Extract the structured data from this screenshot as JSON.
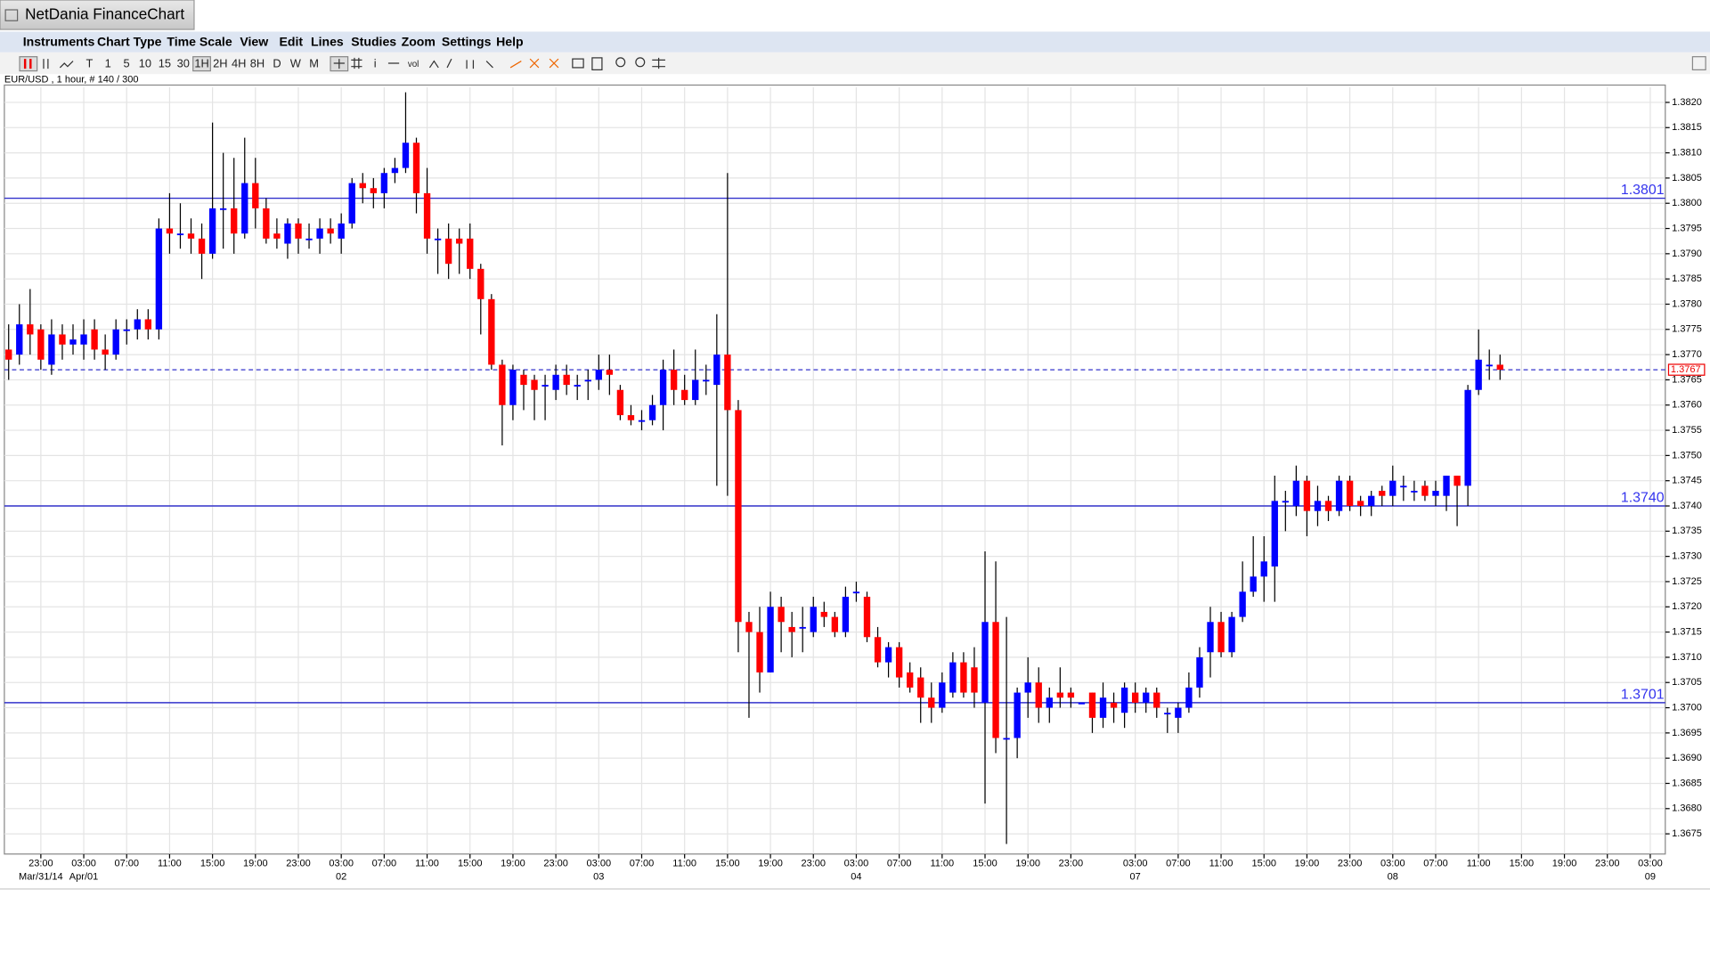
{
  "window": {
    "title": "NetDania FinanceChart",
    "menu": [
      "Instruments",
      "Chart Type",
      "Time Scale",
      "View",
      "Edit",
      "Lines",
      "Studies",
      "Zoom",
      "Settings",
      "Help"
    ],
    "toolbar": [
      "T",
      "1",
      "5",
      "10",
      "15",
      "30",
      "1H",
      "2H",
      "4H",
      "8H",
      "D",
      "W",
      "M",
      "i",
      "vol"
    ]
  },
  "chart_data": {
    "type": "candlestick",
    "subtitle": "EUR/USD , 1 hour, # 140 / 300",
    "up_color": "#0000ff",
    "down_color": "#ff0000",
    "grid": true,
    "xlim": [
      -0.4,
      154.4
    ],
    "ylim": [
      1.3671,
      1.3823
    ],
    "xticks": [
      {
        "value": 3,
        "label": "23:00"
      },
      {
        "value": 7,
        "label": "03:00"
      },
      {
        "value": 11,
        "label": "07:00"
      },
      {
        "value": 15,
        "label": "11:00"
      },
      {
        "value": 19,
        "label": "15:00"
      },
      {
        "value": 23,
        "label": "19:00"
      },
      {
        "value": 27,
        "label": "23:00"
      },
      {
        "value": 31,
        "label": "03:00"
      },
      {
        "value": 35,
        "label": "07:00"
      },
      {
        "value": 39,
        "label": "11:00"
      },
      {
        "value": 43,
        "label": "15:00"
      },
      {
        "value": 47,
        "label": "19:00"
      },
      {
        "value": 51,
        "label": "23:00"
      },
      {
        "value": 55,
        "label": "03:00"
      },
      {
        "value": 59,
        "label": "07:00"
      },
      {
        "value": 63,
        "label": "11:00"
      },
      {
        "value": 67,
        "label": "15:00"
      },
      {
        "value": 71,
        "label": "19:00"
      },
      {
        "value": 75,
        "label": "23:00"
      },
      {
        "value": 79,
        "label": "03:00"
      },
      {
        "value": 83,
        "label": "07:00"
      },
      {
        "value": 87,
        "label": "11:00"
      },
      {
        "value": 91,
        "label": "15:00"
      },
      {
        "value": 95,
        "label": "19:00"
      },
      {
        "value": 99,
        "label": "23:00"
      },
      {
        "value": 105,
        "label": "03:00"
      },
      {
        "value": 109,
        "label": "07:00"
      },
      {
        "value": 113,
        "label": "11:00"
      },
      {
        "value": 117,
        "label": "15:00"
      },
      {
        "value": 121,
        "label": "19:00"
      },
      {
        "value": 125,
        "label": "23:00"
      },
      {
        "value": 129,
        "label": "03:00"
      },
      {
        "value": 133,
        "label": "07:00"
      },
      {
        "value": 137,
        "label": "11:00"
      },
      {
        "value": 141,
        "label": "15:00"
      },
      {
        "value": 145,
        "label": "19:00"
      },
      {
        "value": 149,
        "label": "23:00"
      },
      {
        "value": 153,
        "label": "03:00"
      }
    ],
    "xdates": [
      {
        "value": 3,
        "label": "Mar/31/14"
      },
      {
        "value": 7,
        "label": "Apr/01"
      },
      {
        "value": 31,
        "label": "02"
      },
      {
        "value": 55,
        "label": "03"
      },
      {
        "value": 79,
        "label": "04"
      },
      {
        "value": 105,
        "label": "07"
      },
      {
        "value": 129,
        "label": "08"
      },
      {
        "value": 153,
        "label": "09"
      }
    ],
    "yticks": [
      {
        "value": 1.382,
        "label": "1.3820"
      },
      1.3815,
      {
        "value": 1.381,
        "label": "1.3810"
      },
      1.3805,
      {
        "value": 1.38,
        "label": "1.3800"
      },
      1.3795,
      {
        "value": 1.379,
        "label": "1.3790"
      },
      1.3785,
      {
        "value": 1.378,
        "label": "1.3780"
      },
      1.3775,
      {
        "value": 1.377,
        "label": "1.3770"
      },
      1.3765,
      {
        "value": 1.376,
        "label": "1.3760"
      },
      1.3755,
      {
        "value": 1.375,
        "label": "1.3750"
      },
      1.3745,
      {
        "value": 1.374,
        "label": "1.3740"
      },
      1.3735,
      {
        "value": 1.373,
        "label": "1.3730"
      },
      1.3725,
      {
        "value": 1.372,
        "label": "1.3720"
      },
      1.3715,
      {
        "value": 1.371,
        "label": "1.3710"
      },
      1.3705,
      {
        "value": 1.37,
        "label": "1.3700"
      },
      1.3695,
      {
        "value": 1.369,
        "label": "1.3690"
      },
      1.3685,
      {
        "value": 1.368,
        "label": "1.3680"
      },
      1.3675
    ],
    "levels": [
      {
        "value": 1.3801,
        "label": "1.3801"
      },
      {
        "value": 1.374,
        "label": "1.3740"
      },
      {
        "value": 1.3701,
        "label": "1.3701"
      }
    ],
    "last_price": {
      "value": 1.3767,
      "label": "1.3767"
    },
    "open": [
      1.3771,
      1.377,
      1.3776,
      1.3775,
      1.3768,
      1.3774,
      1.3772,
      1.3772,
      1.3775,
      1.3771,
      1.377,
      1.3775,
      1.3775,
      1.3777,
      1.3775,
      1.3795,
      1.3794,
      1.3794,
      1.3793,
      1.379,
      1.3799,
      1.3799,
      1.3794,
      1.3804,
      1.3799,
      1.3794,
      1.3792,
      1.3796,
      1.3793,
      1.3793,
      1.3795,
      1.3793,
      1.3796,
      1.3804,
      1.3803,
      1.3802,
      1.3806,
      1.3807,
      1.3812,
      1.3802,
      1.3793,
      1.3793,
      1.3793,
      1.3793,
      1.3787,
      1.3781,
      1.3768,
      1.376,
      1.3766,
      1.3765,
      1.3764,
      1.3763,
      1.3766,
      1.3764,
      1.3765,
      1.3765,
      1.3767,
      1.3763,
      1.3758,
      1.3757,
      1.3757,
      1.376,
      1.3767,
      1.3763,
      1.3761,
      1.3765,
      1.3764,
      1.377,
      1.3759,
      1.3717,
      1.3715,
      1.3707,
      1.372,
      1.3716,
      1.3716,
      1.3715,
      1.3719,
      1.3718,
      1.3715,
      1.3723,
      1.3722,
      1.3714,
      1.3709,
      1.3712,
      1.3707,
      1.3706,
      1.3702,
      1.37,
      1.3703,
      1.3709,
      1.3708,
      1.3701,
      1.3717,
      1.3694,
      1.3694,
      1.3703,
      1.3705,
      1.37,
      1.3703,
      1.3703,
      1.3701,
      1.3703,
      1.3698,
      1.3701,
      1.3699,
      1.3703,
      1.3701,
      1.3703,
      1.3699,
      1.3698,
      1.37,
      1.3704,
      1.3711,
      1.3717,
      1.3711,
      1.3718,
      1.3723,
      1.3726,
      1.3728,
      1.3741,
      1.374,
      1.3745,
      1.3739,
      1.3741,
      1.3739,
      1.3745,
      1.3741,
      1.374,
      1.3743,
      1.3742,
      1.3744,
      1.3743,
      1.3744,
      1.3742,
      1.3742,
      1.3746,
      1.3744,
      1.3763,
      1.3768,
      1.3768
    ],
    "high": [
      1.3776,
      1.378,
      1.3783,
      1.3776,
      1.3777,
      1.3776,
      1.3776,
      1.3777,
      1.3777,
      1.3774,
      1.3777,
      1.3777,
      1.3779,
      1.3779,
      1.3797,
      1.3802,
      1.38,
      1.3797,
      1.3796,
      1.3816,
      1.381,
      1.3809,
      1.3813,
      1.3809,
      1.3801,
      1.3797,
      1.3797,
      1.3797,
      1.3796,
      1.3797,
      1.3797,
      1.3798,
      1.3805,
      1.3806,
      1.3805,
      1.3807,
      1.3809,
      1.3822,
      1.3813,
      1.3807,
      1.3795,
      1.3796,
      1.3795,
      1.3796,
      1.3788,
      1.3782,
      1.3769,
      1.3768,
      1.3767,
      1.3766,
      1.3766,
      1.3768,
      1.3768,
      1.3766,
      1.3767,
      1.377,
      1.377,
      1.3764,
      1.376,
      1.3759,
      1.3762,
      1.3769,
      1.3771,
      1.3766,
      1.3771,
      1.3768,
      1.3778,
      1.3806,
      1.3761,
      1.3719,
      1.372,
      1.3723,
      1.3722,
      1.3719,
      1.372,
      1.3722,
      1.3721,
      1.3719,
      1.3724,
      1.3725,
      1.3723,
      1.3716,
      1.3713,
      1.3713,
      1.3709,
      1.3708,
      1.3705,
      1.3707,
      1.3711,
      1.3711,
      1.3712,
      1.3731,
      1.3729,
      1.3718,
      1.3704,
      1.371,
      1.3708,
      1.3704,
      1.3708,
      1.3704,
      1.3701,
      1.3703,
      1.3705,
      1.3703,
      1.3705,
      1.3705,
      1.3704,
      1.3704,
      1.37,
      1.3701,
      1.3707,
      1.3712,
      1.372,
      1.3719,
      1.3719,
      1.3729,
      1.3734,
      1.3734,
      1.3746,
      1.3743,
      1.3748,
      1.3746,
      1.3744,
      1.3742,
      1.3746,
      1.3746,
      1.3742,
      1.3743,
      1.3744,
      1.3748,
      1.3746,
      1.3745,
      1.3745,
      1.3745,
      1.3746,
      1.3746,
      1.3764,
      1.3775,
      1.3771,
      1.377
    ],
    "low": [
      1.3765,
      1.3768,
      1.377,
      1.3767,
      1.3766,
      1.3769,
      1.377,
      1.3769,
      1.3769,
      1.3767,
      1.3769,
      1.3772,
      1.3773,
      1.3773,
      1.3773,
      1.379,
      1.3791,
      1.379,
      1.3785,
      1.3789,
      1.3791,
      1.379,
      1.3793,
      1.3795,
      1.3792,
      1.3791,
      1.3789,
      1.379,
      1.3791,
      1.379,
      1.3792,
      1.379,
      1.3795,
      1.38,
      1.3799,
      1.3799,
      1.3804,
      1.3806,
      1.3798,
      1.379,
      1.3786,
      1.3785,
      1.3786,
      1.3785,
      1.3774,
      1.3767,
      1.3752,
      1.3757,
      1.3759,
      1.3757,
      1.3757,
      1.3761,
      1.3762,
      1.3761,
      1.3761,
      1.3763,
      1.3762,
      1.3757,
      1.3756,
      1.3755,
      1.3756,
      1.3755,
      1.376,
      1.376,
      1.376,
      1.3762,
      1.3744,
      1.3742,
      1.3711,
      1.3698,
      1.3703,
      1.3707,
      1.3711,
      1.371,
      1.3711,
      1.3714,
      1.3716,
      1.3714,
      1.3714,
      1.3721,
      1.3713,
      1.3708,
      1.3706,
      1.3704,
      1.3703,
      1.3697,
      1.3697,
      1.3699,
      1.3702,
      1.3702,
      1.37,
      1.3681,
      1.3691,
      1.3673,
      1.369,
      1.3698,
      1.3697,
      1.3697,
      1.37,
      1.37,
      1.3701,
      1.3695,
      1.3696,
      1.3697,
      1.3696,
      1.3699,
      1.3699,
      1.3698,
      1.3695,
      1.3695,
      1.3699,
      1.3702,
      1.3706,
      1.371,
      1.371,
      1.3717,
      1.3722,
      1.3721,
      1.3721,
      1.3735,
      1.3738,
      1.3734,
      1.3736,
      1.3737,
      1.3738,
      1.3739,
      1.3738,
      1.3738,
      1.374,
      1.374,
      1.3741,
      1.3741,
      1.3741,
      1.374,
      1.3739,
      1.3736,
      1.374,
      1.3762,
      1.3765,
      1.3765
    ],
    "close": [
      1.3769,
      1.3776,
      1.3774,
      1.3769,
      1.3774,
      1.3772,
      1.3773,
      1.3774,
      1.3771,
      1.377,
      1.3775,
      1.3775,
      1.3777,
      1.3775,
      1.3795,
      1.3794,
      1.3794,
      1.3793,
      1.379,
      1.3799,
      1.3799,
      1.3794,
      1.3804,
      1.3799,
      1.3793,
      1.3793,
      1.3796,
      1.3793,
      1.3793,
      1.3795,
      1.3794,
      1.3796,
      1.3804,
      1.3803,
      1.3802,
      1.3806,
      1.3807,
      1.3812,
      1.3802,
      1.3793,
      1.3793,
      1.3788,
      1.3792,
      1.3787,
      1.3781,
      1.3768,
      1.376,
      1.3767,
      1.3764,
      1.3763,
      1.3764,
      1.3766,
      1.3764,
      1.3764,
      1.3765,
      1.3767,
      1.3766,
      1.3758,
      1.3757,
      1.3757,
      1.376,
      1.3767,
      1.3763,
      1.3761,
      1.3765,
      1.3765,
      1.377,
      1.3759,
      1.3717,
      1.3715,
      1.3707,
      1.372,
      1.3717,
      1.3715,
      1.3716,
      1.372,
      1.3718,
      1.3715,
      1.3722,
      1.3723,
      1.3714,
      1.3709,
      1.3712,
      1.3706,
      1.3704,
      1.3702,
      1.37,
      1.3705,
      1.3709,
      1.3703,
      1.3703,
      1.3717,
      1.3694,
      1.3694,
      1.3703,
      1.3705,
      1.37,
      1.3702,
      1.3702,
      1.3702,
      1.3701,
      1.3698,
      1.3702,
      1.37,
      1.3704,
      1.3701,
      1.3703,
      1.37,
      1.3699,
      1.37,
      1.3704,
      1.371,
      1.3717,
      1.3711,
      1.3718,
      1.3723,
      1.3726,
      1.3729,
      1.3741,
      1.3741,
      1.3745,
      1.3739,
      1.3741,
      1.3739,
      1.3745,
      1.374,
      1.374,
      1.3742,
      1.3742,
      1.3745,
      1.3744,
      1.3743,
      1.3742,
      1.3743,
      1.3746,
      1.3744,
      1.3763,
      1.3769,
      1.3768,
      1.3767
    ]
  }
}
